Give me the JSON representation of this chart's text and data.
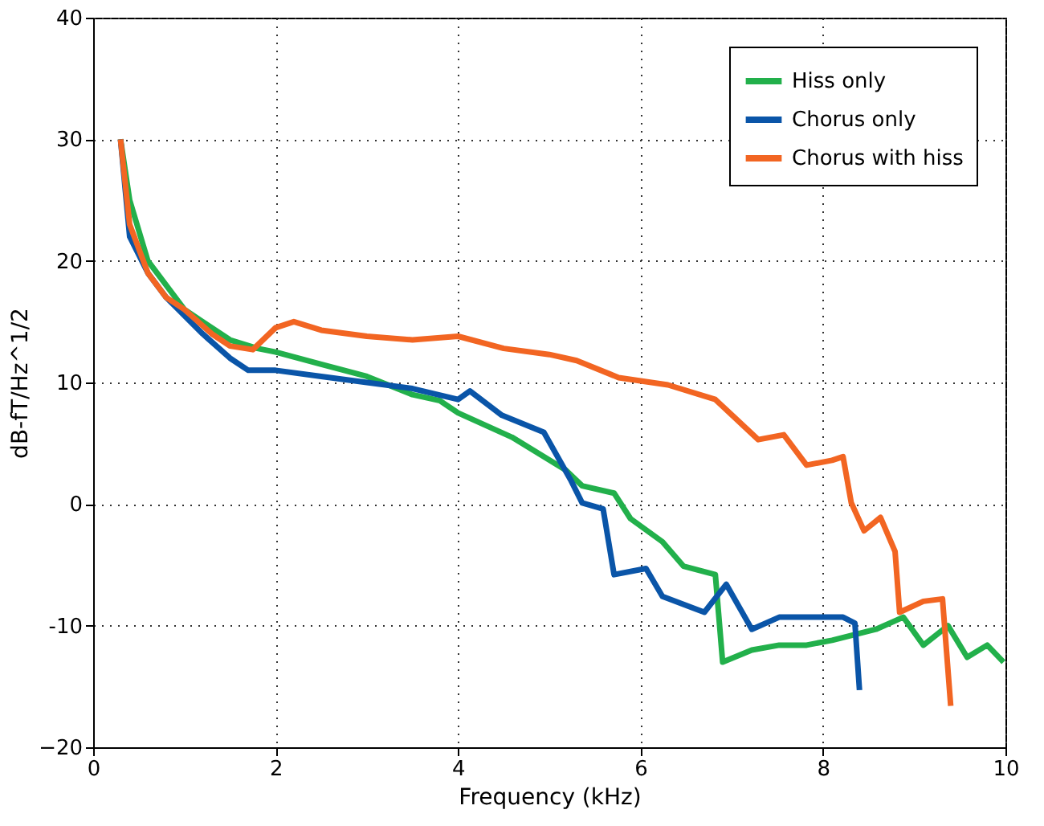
{
  "chart_data": {
    "type": "line",
    "xlabel": "Frequency (kHz)",
    "ylabel": "dB-fT/Hz^1/2",
    "xlim": [
      0,
      10
    ],
    "ylim": [
      -20,
      40
    ],
    "xticks": [
      0,
      2,
      4,
      6,
      8,
      10
    ],
    "yticks": [
      {
        "value": -20,
        "label": "−20"
      },
      -10,
      0,
      10,
      20,
      30,
      40
    ],
    "grid": true,
    "legend": "top right",
    "line_style": "solid",
    "marker": "none",
    "series": [
      {
        "name": "Hiss only",
        "color": "#22b04b",
        "x": [
          0.3,
          0.4,
          0.6,
          0.8,
          1.0,
          1.2,
          1.5,
          1.8,
          2.0,
          2.5,
          3.0,
          3.5,
          3.8,
          4.0,
          4.59,
          5.18,
          5.36,
          5.71,
          5.89,
          6.24,
          6.47,
          6.82,
          6.9,
          7.22,
          7.52,
          7.82,
          8.1,
          8.58,
          8.88,
          9.1,
          9.37,
          9.58,
          9.8,
          9.98
        ],
        "values": [
          30,
          25,
          20,
          18,
          16,
          15,
          13.5,
          12.8,
          12.5,
          11.5,
          10.5,
          9,
          8.5,
          7.5,
          5.5,
          2.8,
          1.5,
          0.9,
          -1.2,
          -3.1,
          -5.1,
          -5.8,
          -13,
          -12,
          -11.6,
          -11.6,
          -11.2,
          -10.3,
          -9.3,
          -11.6,
          -10,
          -12.6,
          -11.6,
          -13
        ]
      },
      {
        "name": "Chorus only",
        "color": "#0a55a8",
        "x": [
          0.3,
          0.4,
          0.6,
          0.8,
          1.0,
          1.2,
          1.5,
          1.7,
          2.0,
          2.5,
          3.0,
          3.5,
          4.0,
          4.13,
          4.48,
          4.94,
          5.24,
          5.36,
          5.59,
          5.71,
          6.06,
          6.24,
          6.7,
          6.94,
          7.22,
          7.52,
          7.82,
          8.22,
          8.35,
          8.4
        ],
        "values": [
          30,
          22,
          19,
          17,
          15.5,
          14,
          12,
          11,
          11,
          10.5,
          10,
          9.5,
          8.6,
          9.3,
          7.3,
          5.9,
          1.9,
          0.1,
          -0.4,
          -5.8,
          -5.3,
          -7.6,
          -8.9,
          -6.6,
          -10.3,
          -9.3,
          -9.3,
          -9.3,
          -9.8,
          -15.3
        ]
      },
      {
        "name": "Chorus with hiss",
        "color": "#f26522",
        "x": [
          0.3,
          0.4,
          0.6,
          0.8,
          1.0,
          1.3,
          1.5,
          1.75,
          2.0,
          2.2,
          2.5,
          3.0,
          3.5,
          4.0,
          4.5,
          5.0,
          5.3,
          5.76,
          6.3,
          6.82,
          7.29,
          7.57,
          7.82,
          8.1,
          8.22,
          8.31,
          8.45,
          8.63,
          8.79,
          8.84,
          9.1,
          9.31,
          9.4
        ],
        "values": [
          30,
          23,
          19,
          17,
          16,
          14,
          13,
          12.7,
          14.5,
          15,
          14.3,
          13.8,
          13.5,
          13.8,
          12.8,
          12.3,
          11.8,
          10.4,
          9.8,
          8.6,
          5.3,
          5.7,
          3.2,
          3.6,
          3.9,
          0.1,
          -2.2,
          -1.1,
          -3.9,
          -8.9,
          -8,
          -7.8,
          -16.6
        ]
      }
    ]
  }
}
